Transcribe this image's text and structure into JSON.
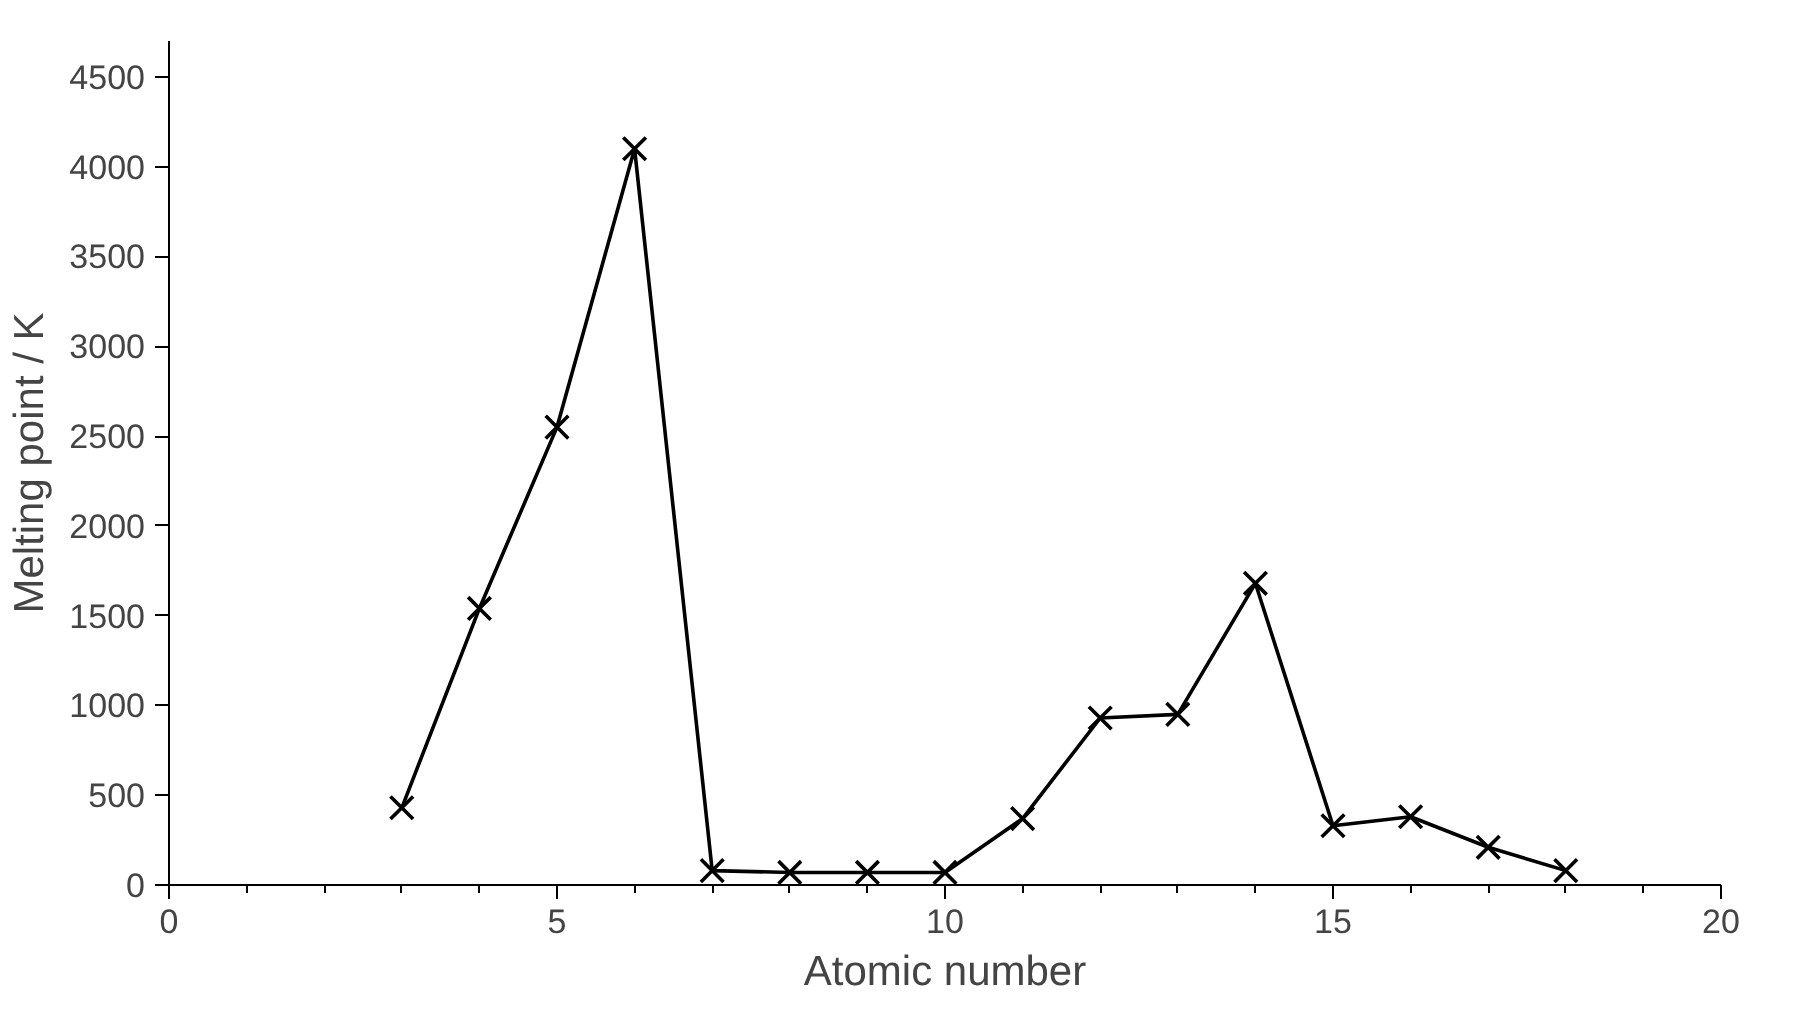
{
  "chart_data": {
    "type": "line",
    "xlabel": "Atomic number",
    "ylabel": "Melting point / K",
    "x": [
      3,
      4,
      5,
      6,
      7,
      8,
      9,
      10,
      11,
      12,
      13,
      14,
      15,
      16,
      17,
      18
    ],
    "series": [
      {
        "color": "#000000",
        "values": [
          430,
          1540,
          2550,
          4100,
          80,
          70,
          70,
          70,
          370,
          930,
          950,
          1680,
          330,
          380,
          210,
          80
        ]
      }
    ],
    "xlim": [
      0,
      20
    ],
    "xticks": [
      0,
      5,
      10,
      15,
      20
    ],
    "ylim": [
      0,
      4700
    ],
    "yticks": [
      0,
      500,
      1000,
      1500,
      2000,
      2500,
      3000,
      3500,
      4000,
      4500
    ],
    "grid": false,
    "marker": "cross",
    "line_style": "solid"
  }
}
